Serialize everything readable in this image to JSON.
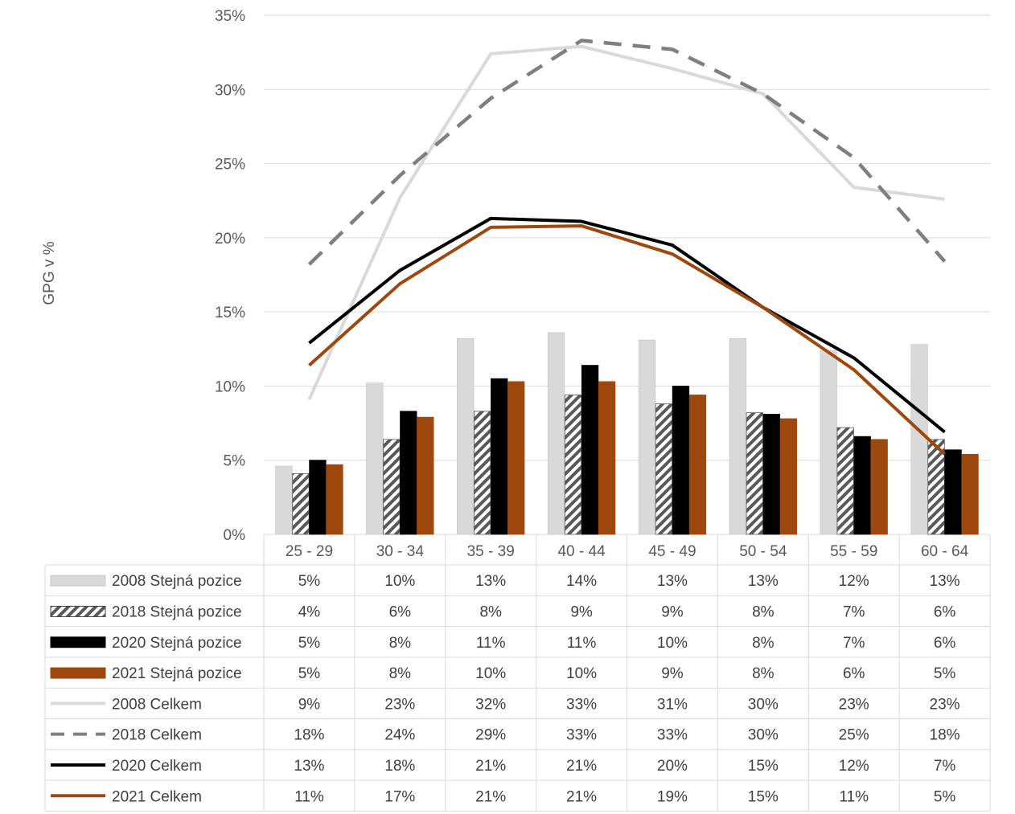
{
  "chart_data": {
    "type": "bar",
    "categories": [
      "25 - 29",
      "30 - 34",
      "35 - 39",
      "40 - 44",
      "45 - 49",
      "50 - 54",
      "55 - 59",
      "60 - 64"
    ],
    "ylabel": "GPG v %",
    "ylim": [
      0,
      35
    ],
    "y_ticks": [
      "0%",
      "5%",
      "10%",
      "15%",
      "20%",
      "25%",
      "30%",
      "35%"
    ],
    "grid": true,
    "legend_placement": "data-table-below",
    "bar_series": [
      {
        "name": "2008 Stejná pozice",
        "values": [
          4.6,
          10.2,
          13.2,
          13.6,
          13.1,
          13.2,
          12.4,
          12.8
        ],
        "labels": [
          "5%",
          "10%",
          "13%",
          "14%",
          "13%",
          "13%",
          "12%",
          "13%"
        ],
        "color": "#d9d9d9",
        "pattern": "solid"
      },
      {
        "name": "2018 Stejná pozice",
        "values": [
          4.1,
          6.4,
          8.3,
          9.4,
          8.8,
          8.2,
          7.2,
          6.4
        ],
        "labels": [
          "4%",
          "6%",
          "8%",
          "9%",
          "9%",
          "8%",
          "7%",
          "6%"
        ],
        "color": "#595959",
        "pattern": "hatch"
      },
      {
        "name": "2020 Stejná pozice",
        "values": [
          5.0,
          8.3,
          10.5,
          11.4,
          10.0,
          8.1,
          6.6,
          5.7
        ],
        "labels": [
          "5%",
          "8%",
          "11%",
          "11%",
          "10%",
          "8%",
          "7%",
          "6%"
        ],
        "color": "#000000",
        "pattern": "solid"
      },
      {
        "name": "2021 Stejná pozice",
        "values": [
          4.7,
          7.9,
          10.3,
          10.3,
          9.4,
          7.8,
          6.4,
          5.4
        ],
        "labels": [
          "5%",
          "8%",
          "10%",
          "10%",
          "9%",
          "8%",
          "6%",
          "5%"
        ],
        "color": "#9e480e",
        "pattern": "solid"
      }
    ],
    "line_series": [
      {
        "name": "2008 Celkem",
        "values": [
          9.1,
          22.7,
          32.4,
          32.9,
          31.4,
          29.7,
          23.4,
          22.6
        ],
        "labels": [
          "9%",
          "23%",
          "32%",
          "33%",
          "31%",
          "30%",
          "23%",
          "23%"
        ],
        "color": "#d9d9d9",
        "style": "solid"
      },
      {
        "name": "2018 Celkem",
        "values": [
          18.2,
          24.2,
          29.4,
          33.3,
          32.7,
          29.7,
          25.4,
          18.4
        ],
        "labels": [
          "18%",
          "24%",
          "29%",
          "33%",
          "33%",
          "30%",
          "25%",
          "18%"
        ],
        "color": "#7f7f7f",
        "style": "dashed"
      },
      {
        "name": "2020 Celkem",
        "values": [
          12.9,
          17.8,
          21.3,
          21.1,
          19.5,
          15.3,
          11.9,
          6.9
        ],
        "labels": [
          "13%",
          "18%",
          "21%",
          "21%",
          "20%",
          "15%",
          "12%",
          "7%"
        ],
        "color": "#000000",
        "style": "solid"
      },
      {
        "name": "2021 Celkem",
        "values": [
          11.4,
          16.9,
          20.7,
          20.8,
          18.9,
          15.3,
          11.1,
          5.4
        ],
        "labels": [
          "11%",
          "17%",
          "21%",
          "21%",
          "19%",
          "15%",
          "11%",
          "5%"
        ],
        "color": "#9e480e",
        "style": "solid"
      }
    ]
  }
}
